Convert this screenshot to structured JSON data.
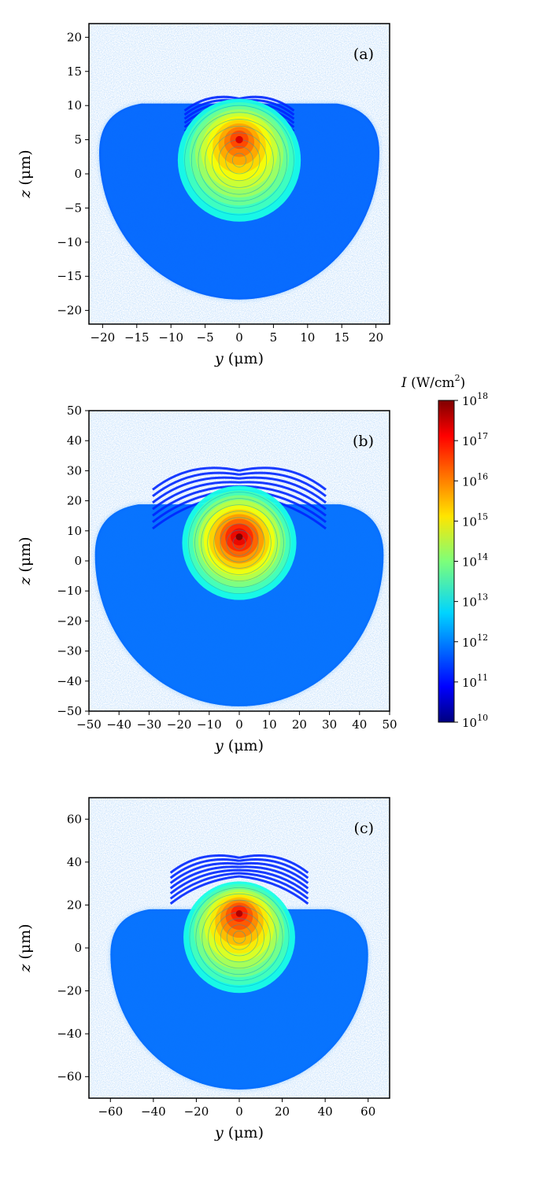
{
  "chart_data": [
    {
      "type": "heatmap",
      "panel": "(a)",
      "x": {
        "label_var": "y",
        "label_unit": " (μm)",
        "range": [
          -22,
          22
        ],
        "ticks": [
          -20,
          -15,
          -10,
          -5,
          0,
          5,
          10,
          15,
          20
        ],
        "tick_labels": [
          "−20",
          "−15",
          "−10",
          "−5",
          "0",
          "5",
          "10",
          "15",
          "20"
        ]
      },
      "y": {
        "label_var": "z",
        "label_unit": " (μm)",
        "range": [
          -22,
          22
        ],
        "ticks": [
          -20,
          -15,
          -10,
          -5,
          0,
          5,
          10,
          15,
          20
        ],
        "tick_labels": [
          "−20",
          "−15",
          "−10",
          "−5",
          "0",
          "5",
          "10",
          "15",
          "20"
        ]
      },
      "features": {
        "background_cloud": {
          "center": [
            0,
            -2
          ],
          "radius": 20.5,
          "log10_intensity": 11.7
        },
        "bright_disk": {
          "center": [
            0,
            2
          ],
          "radius": 9,
          "peak_log10_intensity": 16.5,
          "peak_z": 5
        },
        "fans": {
          "origin_z": 11,
          "extent": 5
        }
      }
    },
    {
      "type": "heatmap",
      "panel": "(b)",
      "x": {
        "label_var": "y",
        "label_unit": " (μm)",
        "range": [
          -50,
          50
        ],
        "ticks": [
          -50,
          -40,
          -30,
          -20,
          -10,
          0,
          10,
          20,
          30,
          40,
          50
        ],
        "tick_labels": [
          "−50",
          "−40",
          "−30",
          "−20",
          "−10",
          "0",
          "10",
          "20",
          "30",
          "40",
          "50"
        ]
      },
      "y": {
        "label_var": "z",
        "label_unit": " (μm)",
        "range": [
          -50,
          50
        ],
        "ticks": [
          -50,
          -40,
          -30,
          -20,
          -10,
          0,
          10,
          20,
          30,
          40,
          50
        ],
        "tick_labels": [
          "−50",
          "−40",
          "−30",
          "−20",
          "−10",
          "0",
          "10",
          "20",
          "30",
          "40",
          "50"
        ]
      },
      "features": {
        "background_cloud": {
          "center": [
            0,
            -10
          ],
          "radius": 48,
          "log10_intensity": 11.8
        },
        "bright_disk": {
          "center": [
            0,
            6
          ],
          "radius": 19,
          "peak_log10_intensity": 17.2,
          "peak_z": 8
        },
        "fans": {
          "origin_z": 30,
          "extent": 18
        }
      }
    },
    {
      "type": "heatmap",
      "panel": "(c)",
      "x": {
        "label_var": "y",
        "label_unit": " (μm)",
        "range": [
          -70,
          70
        ],
        "ticks": [
          -60,
          -40,
          -20,
          0,
          20,
          40,
          60
        ],
        "tick_labels": [
          "−60",
          "−40",
          "−20",
          "0",
          "20",
          "40",
          "60"
        ]
      },
      "y": {
        "label_var": "z",
        "label_unit": " (μm)",
        "range": [
          -70,
          70
        ],
        "ticks": [
          -60,
          -40,
          -20,
          0,
          20,
          40,
          60
        ],
        "tick_labels": [
          "−60",
          "−40",
          "−20",
          "0",
          "20",
          "40",
          "60"
        ]
      },
      "features": {
        "background_cloud": {
          "center": [
            0,
            -18
          ],
          "radius": 60,
          "log10_intensity": 11.8
        },
        "bright_disk": {
          "center": [
            0,
            5
          ],
          "radius": 26,
          "peak_log10_intensity": 16.8,
          "peak_z": 16
        },
        "fans": {
          "origin_z": 42,
          "extent": 20
        }
      }
    }
  ],
  "colorbar": {
    "title_var": "I",
    "title_unit": " (W/cm",
    "title_sup": "2",
    "title_close": ")",
    "scale": "log",
    "range_log10": [
      10,
      18
    ],
    "ticks": [
      {
        "exp": 10,
        "base": "10",
        "sup": "10"
      },
      {
        "exp": 11,
        "base": "10",
        "sup": "11"
      },
      {
        "exp": 12,
        "base": "10",
        "sup": "12"
      },
      {
        "exp": 13,
        "base": "10",
        "sup": "13"
      },
      {
        "exp": 14,
        "base": "10",
        "sup": "14"
      },
      {
        "exp": 15,
        "base": "10",
        "sup": "15"
      },
      {
        "exp": 16,
        "base": "10",
        "sup": "16"
      },
      {
        "exp": 17,
        "base": "10",
        "sup": "17"
      },
      {
        "exp": 18,
        "base": "10",
        "sup": "18"
      }
    ],
    "colormap": "jet"
  }
}
